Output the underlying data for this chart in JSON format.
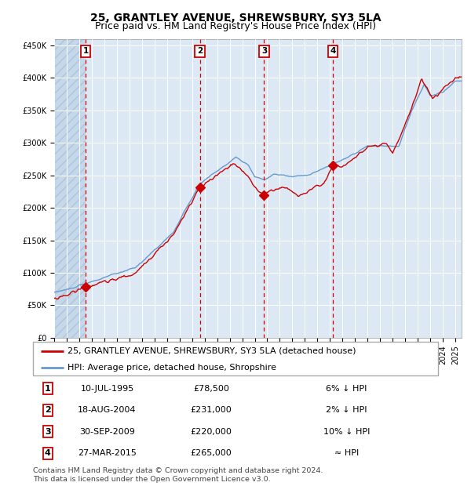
{
  "title": "25, GRANTLEY AVENUE, SHREWSBURY, SY3 5LA",
  "subtitle": "Price paid vs. HM Land Registry's House Price Index (HPI)",
  "ylim": [
    0,
    460000
  ],
  "yticks": [
    0,
    50000,
    100000,
    150000,
    200000,
    250000,
    300000,
    350000,
    400000,
    450000
  ],
  "ytick_labels": [
    "£0",
    "£50K",
    "£100K",
    "£150K",
    "£200K",
    "£250K",
    "£300K",
    "£350K",
    "£400K",
    "£450K"
  ],
  "xlim_start": 1993.0,
  "xlim_end": 2025.5,
  "transactions": [
    {
      "num": 1,
      "date": "10-JUL-1995",
      "year": 1995.52,
      "price": 78500,
      "hpi_pct": "6% ↓ HPI"
    },
    {
      "num": 2,
      "date": "18-AUG-2004",
      "year": 2004.63,
      "price": 231000,
      "hpi_pct": "2% ↓ HPI"
    },
    {
      "num": 3,
      "date": "30-SEP-2009",
      "year": 2009.75,
      "price": 220000,
      "hpi_pct": "10% ↓ HPI"
    },
    {
      "num": 4,
      "date": "27-MAR-2015",
      "year": 2015.24,
      "price": 265000,
      "hpi_pct": "≈ HPI"
    }
  ],
  "hatch_end_year": 1995.52,
  "bg_color": "#dce9f5",
  "grid_color": "#ffffff",
  "red_line_color": "#cc0000",
  "blue_line_color": "#6699cc",
  "dashed_line_color": "#dd0000",
  "marker_color": "#cc0000",
  "legend_label_red": "25, GRANTLEY AVENUE, SHREWSBURY, SY3 5LA (detached house)",
  "legend_label_blue": "HPI: Average price, detached house, Shropshire",
  "footer_text": "Contains HM Land Registry data © Crown copyright and database right 2024.\nThis data is licensed under the Open Government Licence v3.0.",
  "title_fontsize": 10,
  "subtitle_fontsize": 9,
  "axis_fontsize": 7,
  "legend_fontsize": 8,
  "table_fontsize": 8
}
